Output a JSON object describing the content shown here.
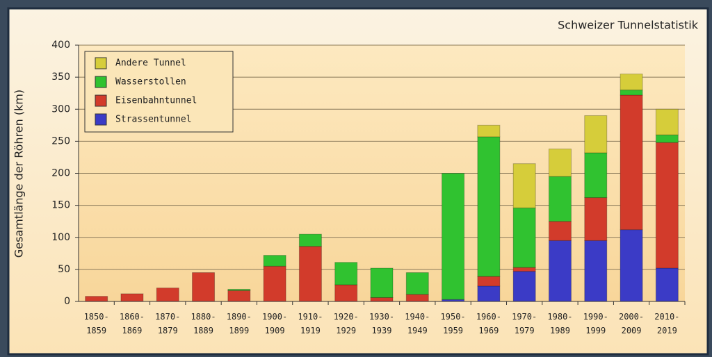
{
  "chart_data": {
    "type": "stacked-bar",
    "title": "Schweizer Tunnelstatistik",
    "y_label": "Gesamtlänge der Röhren (km)",
    "categories": [
      "1850-1859",
      "1860-1869",
      "1870-1879",
      "1880-1889",
      "1890-1899",
      "1900-1909",
      "1910-1919",
      "1920-1929",
      "1930-1939",
      "1940-1949",
      "1950-1959",
      "1960-1969",
      "1970-1979",
      "1980-1989",
      "1990-1999",
      "2000-2009",
      "2010-2019"
    ],
    "series": [
      {
        "name": "Strassentunnel",
        "color": "#3b3bc6",
        "values": [
          0,
          0,
          0,
          0,
          0,
          0,
          0,
          0,
          0,
          0,
          3,
          24,
          47,
          95,
          95,
          112,
          52
        ]
      },
      {
        "name": "Eisenbahntunnel",
        "color": "#d23b2b",
        "values": [
          8,
          12,
          21,
          45,
          17,
          55,
          86,
          26,
          6,
          11,
          0,
          15,
          6,
          30,
          67,
          210,
          196
        ]
      },
      {
        "name": "Wasserstollen",
        "color": "#30c230",
        "values": [
          0,
          0,
          0,
          0,
          2,
          17,
          19,
          35,
          46,
          34,
          197,
          218,
          93,
          70,
          70,
          8,
          12
        ]
      },
      {
        "name": "Andere Tunnel",
        "color": "#d6cd3a",
        "values": [
          0,
          0,
          0,
          0,
          0,
          0,
          0,
          0,
          0,
          0,
          0,
          18,
          69,
          43,
          58,
          25,
          40
        ]
      }
    ],
    "ylim": [
      0,
      400
    ],
    "yticks": [
      0,
      50,
      100,
      150,
      200,
      250,
      300,
      350,
      400
    ],
    "grid": true,
    "legend": "top-left"
  }
}
